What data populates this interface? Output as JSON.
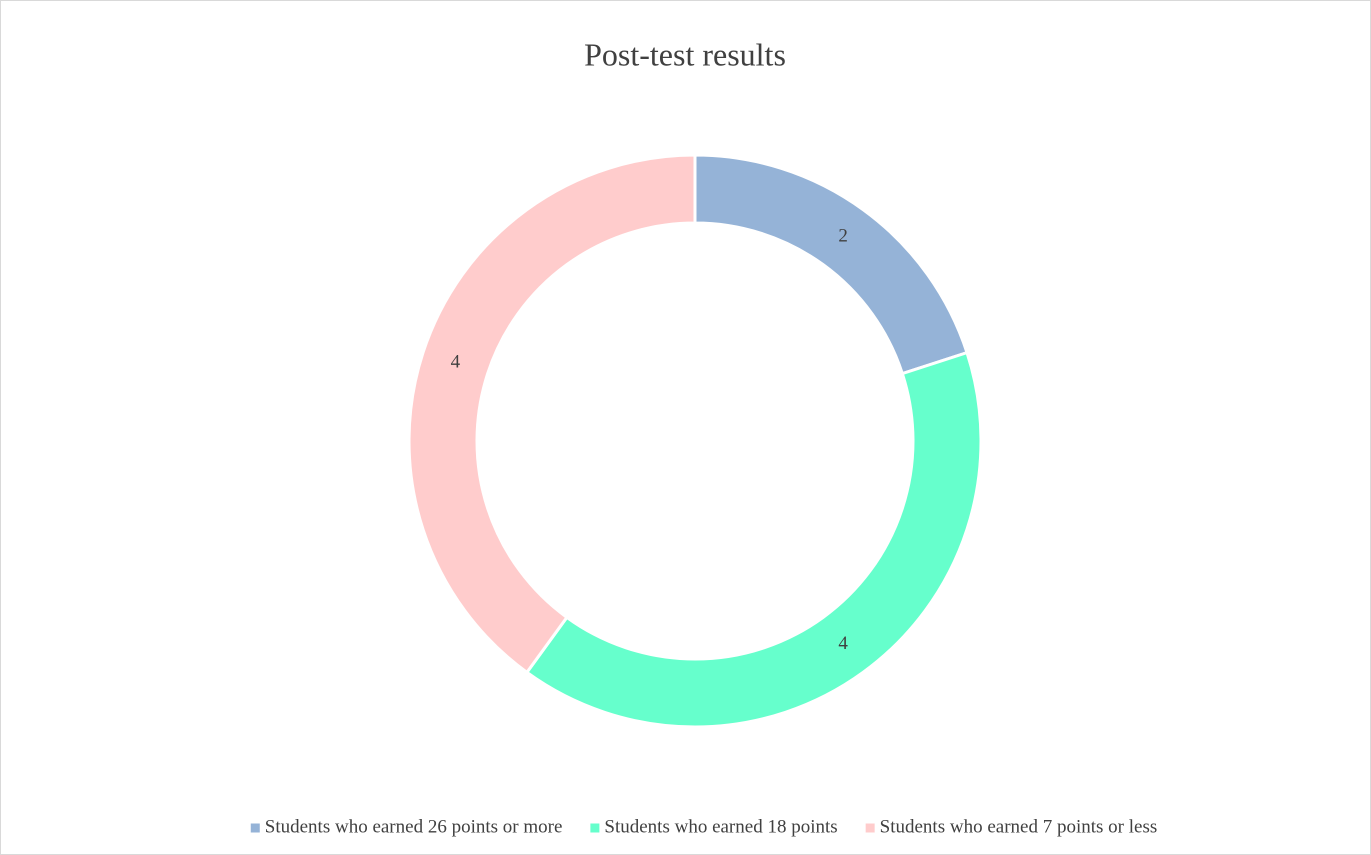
{
  "chart_data": {
    "type": "donut",
    "title": "Post-test results",
    "categories": [
      "Students who earned 26 points or more",
      "Students who earned 18 points",
      "Students who earned 7 points or less"
    ],
    "values": [
      2,
      4,
      4
    ],
    "colors": [
      "#95b3d7",
      "#66ffcc",
      "#ffcccc"
    ],
    "legend": "bottom"
  }
}
